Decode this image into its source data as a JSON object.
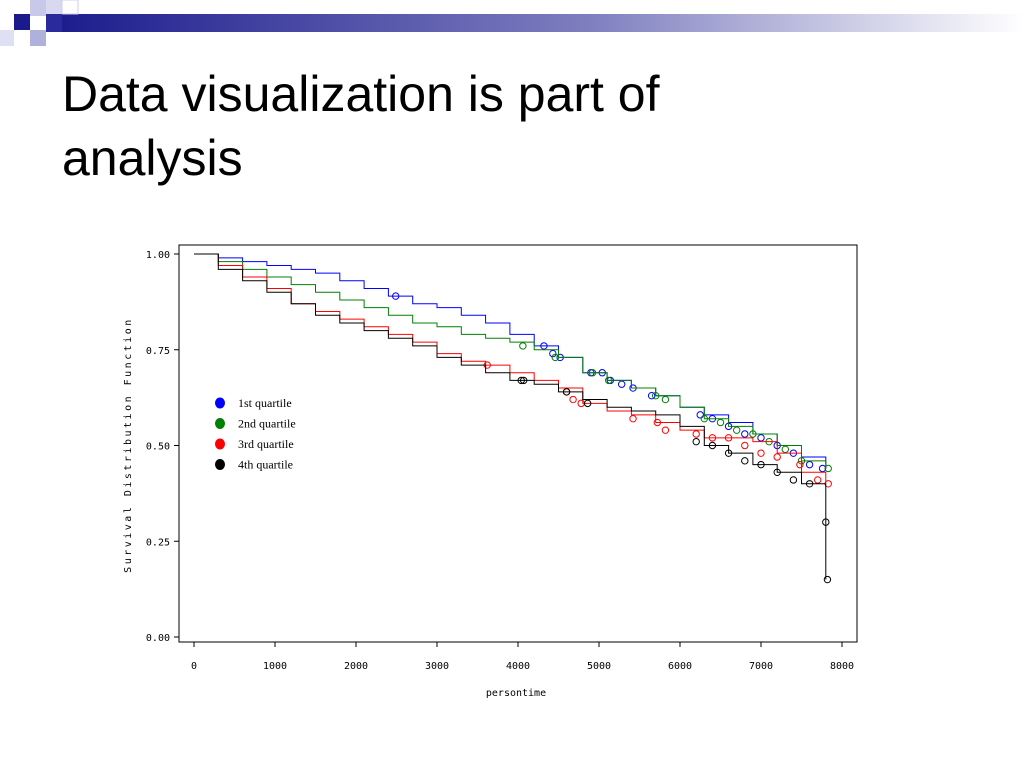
{
  "slide": {
    "title_line1": "Data visualization is part of",
    "title_line2": "analysis"
  },
  "chart_data": {
    "type": "line",
    "xlabel": "persontime",
    "ylabel": "Survival Distribution Function",
    "xlim": [
      0,
      8000
    ],
    "ylim": [
      0,
      1
    ],
    "x_ticks": [
      "0",
      "1000",
      "2000",
      "3000",
      "4000",
      "5000",
      "6000",
      "7000",
      "8000"
    ],
    "y_ticks": [
      "0.00",
      "0.25",
      "0.50",
      "0.75",
      "1.00"
    ],
    "grid": false,
    "legend_position": "left",
    "step": true,
    "series": [
      {
        "name": "1st quartile",
        "color": "#0000ff",
        "x": [
          0,
          300,
          600,
          900,
          1200,
          1500,
          1800,
          2100,
          2400,
          2700,
          3000,
          3300,
          3600,
          3900,
          4200,
          4500,
          4800,
          5100,
          5400,
          5700,
          6000,
          6300,
          6600,
          6900,
          7200,
          7500,
          7800
        ],
        "y": [
          1.0,
          0.99,
          0.98,
          0.97,
          0.96,
          0.95,
          0.93,
          0.91,
          0.89,
          0.87,
          0.86,
          0.84,
          0.82,
          0.79,
          0.76,
          0.73,
          0.69,
          0.67,
          0.65,
          0.63,
          0.6,
          0.58,
          0.56,
          0.53,
          0.5,
          0.47,
          0.44
        ],
        "censored": [
          [
            2490,
            0.89
          ],
          [
            4320,
            0.76
          ],
          [
            4430,
            0.74
          ],
          [
            4520,
            0.73
          ],
          [
            4900,
            0.69
          ],
          [
            5040,
            0.69
          ],
          [
            5140,
            0.67
          ],
          [
            5280,
            0.66
          ],
          [
            5420,
            0.65
          ],
          [
            5650,
            0.63
          ],
          [
            6250,
            0.58
          ],
          [
            6400,
            0.57
          ],
          [
            6600,
            0.55
          ],
          [
            6800,
            0.53
          ],
          [
            7000,
            0.52
          ],
          [
            7200,
            0.5
          ],
          [
            7400,
            0.48
          ],
          [
            7600,
            0.45
          ],
          [
            7760,
            0.44
          ]
        ]
      },
      {
        "name": "2nd quartile",
        "color": "#008000",
        "x": [
          0,
          300,
          600,
          900,
          1200,
          1500,
          1800,
          2100,
          2400,
          2700,
          3000,
          3300,
          3600,
          3900,
          4200,
          4500,
          4800,
          5100,
          5400,
          5700,
          6000,
          6300,
          6600,
          6900,
          7200,
          7500,
          7800
        ],
        "y": [
          1.0,
          0.98,
          0.96,
          0.94,
          0.92,
          0.9,
          0.88,
          0.86,
          0.84,
          0.82,
          0.81,
          0.79,
          0.78,
          0.77,
          0.75,
          0.73,
          0.69,
          0.67,
          0.65,
          0.63,
          0.6,
          0.57,
          0.55,
          0.53,
          0.5,
          0.46,
          0.44
        ],
        "censored": [
          [
            4060,
            0.76
          ],
          [
            4460,
            0.73
          ],
          [
            4920,
            0.69
          ],
          [
            5120,
            0.67
          ],
          [
            5700,
            0.63
          ],
          [
            5820,
            0.62
          ],
          [
            6300,
            0.57
          ],
          [
            6500,
            0.56
          ],
          [
            6700,
            0.54
          ],
          [
            6900,
            0.53
          ],
          [
            7100,
            0.51
          ],
          [
            7300,
            0.49
          ],
          [
            7500,
            0.46
          ],
          [
            7830,
            0.44
          ]
        ]
      },
      {
        "name": "3rd quartile",
        "color": "#ff0000",
        "x": [
          0,
          300,
          600,
          900,
          1200,
          1500,
          1800,
          2100,
          2400,
          2700,
          3000,
          3300,
          3600,
          3900,
          4200,
          4500,
          4800,
          5100,
          5400,
          5700,
          6000,
          6300,
          6600,
          6900,
          7200,
          7500,
          7800
        ],
        "y": [
          1.0,
          0.97,
          0.94,
          0.91,
          0.87,
          0.85,
          0.83,
          0.81,
          0.79,
          0.77,
          0.74,
          0.72,
          0.71,
          0.69,
          0.67,
          0.65,
          0.61,
          0.59,
          0.58,
          0.56,
          0.54,
          0.52,
          0.52,
          0.51,
          0.48,
          0.43,
          0.4
        ],
        "censored": [
          [
            3620,
            0.71
          ],
          [
            4600,
            0.64
          ],
          [
            4680,
            0.62
          ],
          [
            4780,
            0.61
          ],
          [
            5420,
            0.57
          ],
          [
            5720,
            0.56
          ],
          [
            5820,
            0.54
          ],
          [
            6200,
            0.53
          ],
          [
            6400,
            0.52
          ],
          [
            6600,
            0.52
          ],
          [
            6800,
            0.5
          ],
          [
            7000,
            0.48
          ],
          [
            7200,
            0.47
          ],
          [
            7480,
            0.45
          ],
          [
            7700,
            0.41
          ],
          [
            7830,
            0.4
          ]
        ]
      },
      {
        "name": "4th quartile",
        "color": "#000000",
        "x": [
          0,
          300,
          600,
          900,
          1200,
          1500,
          1800,
          2100,
          2400,
          2700,
          3000,
          3300,
          3600,
          3900,
          4200,
          4500,
          4800,
          5100,
          5400,
          5700,
          6000,
          6300,
          6600,
          6900,
          7200,
          7500,
          7800
        ],
        "y": [
          1.0,
          0.96,
          0.93,
          0.9,
          0.87,
          0.84,
          0.82,
          0.8,
          0.78,
          0.76,
          0.73,
          0.71,
          0.69,
          0.67,
          0.66,
          0.64,
          0.62,
          0.6,
          0.59,
          0.58,
          0.55,
          0.5,
          0.48,
          0.45,
          0.43,
          0.4,
          0.4
        ],
        "censored": [
          [
            4040,
            0.67
          ],
          [
            4070,
            0.67
          ],
          [
            4600,
            0.64
          ],
          [
            4860,
            0.61
          ],
          [
            6200,
            0.51
          ],
          [
            6400,
            0.5
          ],
          [
            6600,
            0.48
          ],
          [
            6800,
            0.46
          ],
          [
            7000,
            0.45
          ],
          [
            7200,
            0.43
          ],
          [
            7400,
            0.41
          ],
          [
            7600,
            0.4
          ],
          [
            7800,
            0.3
          ],
          [
            7820,
            0.15
          ]
        ],
        "tail_x": 7800,
        "tail_y": [
          0.4,
          0.3,
          0.15
        ]
      }
    ]
  }
}
